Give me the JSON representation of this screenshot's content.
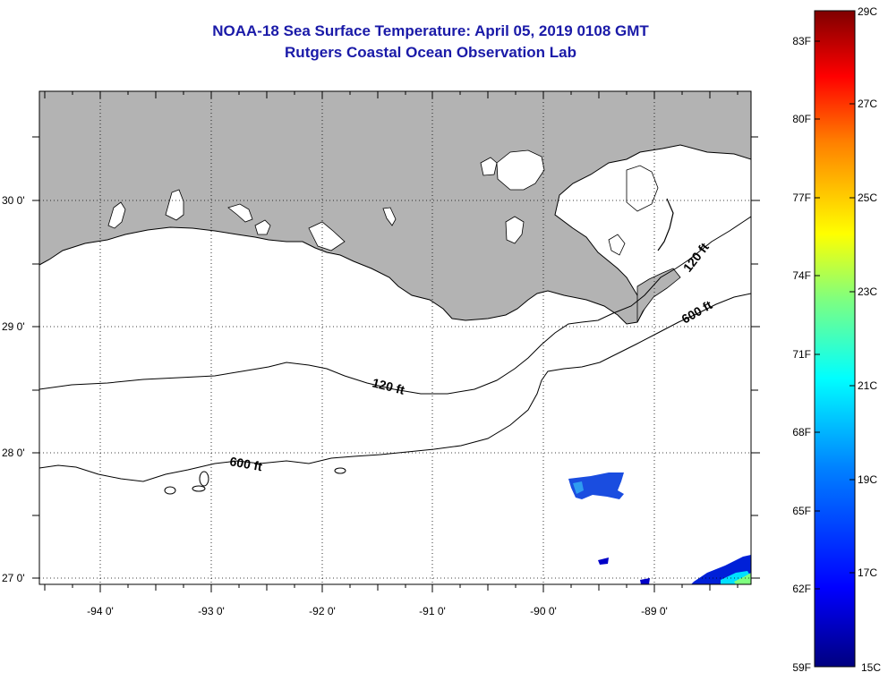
{
  "title": {
    "line1": "NOAA-18 Sea Surface Temperature:  April 05, 2019 0108 GMT",
    "line2": "Rutgers Coastal Ocean Observation Lab"
  },
  "map": {
    "lat_labels": [
      "30 0'",
      "29 0'",
      "28 0'",
      "27 0'"
    ],
    "lon_labels": [
      "-94 0'",
      "-93 0'",
      "-92 0'",
      "-91 0'",
      "-90 0'",
      "-89 0'"
    ],
    "contours": [
      "120 ft",
      "120 ft",
      "600 ft",
      "600 ft"
    ],
    "colors": {
      "land": "#b3b3b3",
      "water": "#ffffff",
      "coast": "#000000"
    }
  },
  "colorbar": {
    "f_labels": [
      "83F",
      "80F",
      "77F",
      "74F",
      "71F",
      "68F",
      "65F",
      "62F",
      "59F"
    ],
    "c_labels": [
      "29C",
      "27C",
      "25C",
      "23C",
      "21C",
      "19C",
      "17C",
      "15C"
    ],
    "colors": [
      "#00007f",
      "#0000ff",
      "#007fff",
      "#00ffff",
      "#7fff7f",
      "#ffff00",
      "#ff7f00",
      "#ff0000",
      "#7f0000"
    ]
  }
}
